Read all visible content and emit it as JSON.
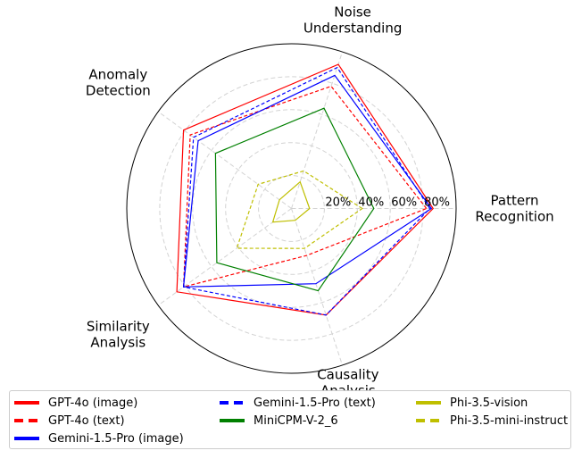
{
  "chart_data": {
    "type": "radar",
    "axes": [
      "Pattern\nRecognition",
      "Noise\nUnderstanding",
      "Anomaly\nDetection",
      "Similarity\nAnalysis",
      "Causality\nAnalysis"
    ],
    "radial_ticks": [
      "20%",
      "40%",
      "60%",
      "80%"
    ],
    "radial_range": [
      0,
      100
    ],
    "grid": true,
    "legend_position": "bottom",
    "series": [
      {
        "name": "GPT-4o (image)",
        "color": "#ff0000",
        "style": "solid",
        "values": [
          86,
          92,
          81,
          86,
          68
        ]
      },
      {
        "name": "GPT-4o (text)",
        "color": "#ff0000",
        "style": "dashed",
        "values": [
          82,
          78,
          76,
          81,
          30
        ]
      },
      {
        "name": "Gemini-1.5-Pro (image)",
        "color": "#0000ff",
        "style": "solid",
        "values": [
          85,
          85,
          70,
          81,
          48
        ]
      },
      {
        "name": "Gemini-1.5-Pro (text)",
        "color": "#0000ff",
        "style": "dashed",
        "values": [
          84,
          90,
          73.5,
          81,
          68
        ]
      },
      {
        "name": "MiniCPM-V-2_6",
        "color": "#008000",
        "style": "solid",
        "values": [
          50,
          64,
          57,
          56,
          52.5
        ]
      },
      {
        "name": "Phi-3.5-vision",
        "color": "#bfbf00",
        "style": "solid",
        "values": [
          11,
          17,
          9,
          14,
          7.5
        ]
      },
      {
        "name": "Phi-3.5-mini-instruct",
        "color": "#bfbf00",
        "style": "dashed",
        "values": [
          43,
          24,
          25,
          41,
          25.5
        ]
      }
    ]
  }
}
